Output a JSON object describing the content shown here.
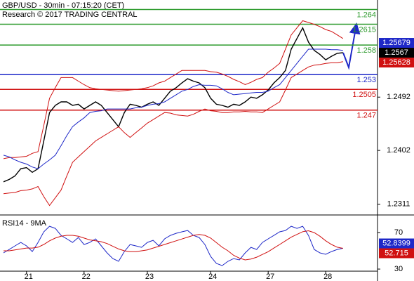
{
  "chart_data": [
    {
      "type": "line",
      "title": "GBP/USD - 30min - 07:15:20 (CET)",
      "subtitle": "Research © 2017 TRADING CENTRAL",
      "categories": [
        null,
        null,
        null,
        null,
        "21",
        null,
        null,
        null,
        null,
        null,
        null,
        null,
        null,
        null,
        "22",
        null,
        null,
        null,
        null,
        null,
        null,
        null,
        null,
        null,
        null,
        "23",
        null,
        null,
        null,
        null,
        null,
        null,
        null,
        null,
        null,
        null,
        "24",
        null,
        null,
        null,
        null,
        null,
        null,
        null,
        null,
        null,
        "27",
        null,
        null,
        null,
        null,
        null,
        null,
        null,
        null,
        null,
        "28",
        null,
        null,
        null
      ],
      "series": [
        {
          "color": "#000000",
          "values": [
            1.2349,
            1.2353,
            1.2359,
            1.2371,
            1.2373,
            1.2365,
            1.2371,
            1.2418,
            1.2466,
            1.2478,
            1.2484,
            1.2484,
            1.2478,
            1.248,
            1.2472,
            1.2478,
            1.2484,
            1.2478,
            1.2466,
            1.2454,
            1.2442,
            1.2466,
            1.248,
            1.2478,
            1.2475,
            1.248,
            1.2484,
            1.2478,
            1.249,
            1.2502,
            1.2508,
            1.2516,
            1.2523,
            1.2519,
            1.2516,
            1.2508,
            1.249,
            1.248,
            1.2478,
            1.2475,
            1.248,
            1.2478,
            1.2484,
            1.2492,
            1.249,
            1.2496,
            1.2504,
            1.2516,
            1.2525,
            1.2537,
            1.2573,
            1.2591,
            1.2609,
            1.2585,
            1.2571,
            1.2564,
            1.2555,
            1.2561,
            1.2566,
            1.2567
          ]
        },
        {
          "color": "#d01010",
          "values": [
            1.2388,
            1.239,
            1.239,
            1.2391,
            1.2392,
            1.2397,
            1.24,
            1.2444,
            1.249,
            1.2508,
            1.2525,
            1.2525,
            1.2525,
            1.2519,
            1.2513,
            1.2508,
            1.2506,
            1.2505,
            1.2504,
            1.2503,
            1.2502,
            1.2503,
            1.2504,
            1.2505,
            1.2506,
            1.2508,
            1.2511,
            1.2516,
            1.2519,
            1.2525,
            1.2531,
            1.2537,
            1.2537,
            1.2537,
            1.2537,
            1.2537,
            1.2535,
            1.2534,
            1.2531,
            1.2527,
            1.2522,
            1.2518,
            1.2513,
            1.2517,
            1.2522,
            1.2525,
            1.2534,
            1.2541,
            1.2549,
            1.2573,
            1.2597,
            1.2609,
            1.2621,
            1.2618,
            1.2615,
            1.2611,
            1.2606,
            1.2603,
            1.2597,
            1.2591
          ]
        },
        {
          "color": "#d01010",
          "values": [
            1.2329,
            1.233,
            1.2331,
            1.2334,
            1.2335,
            1.2337,
            1.2341,
            1.2324,
            1.2309,
            1.2322,
            1.2335,
            1.2359,
            1.2382,
            1.2391,
            1.24,
            1.2409,
            1.2418,
            1.2424,
            1.243,
            1.2436,
            1.2442,
            1.2432,
            1.2424,
            1.2432,
            1.244,
            1.2448,
            1.2454,
            1.246,
            1.2466,
            1.2465,
            1.2462,
            1.2461,
            1.246,
            1.2463,
            1.2468,
            1.2472,
            1.2469,
            1.2468,
            1.2466,
            1.2466,
            1.2467,
            1.2467,
            1.2468,
            1.2467,
            1.2467,
            1.2466,
            1.2472,
            1.2478,
            1.2484,
            1.2504,
            1.2525,
            1.2531,
            1.2537,
            1.2543,
            1.2546,
            1.2547,
            1.2549,
            1.255,
            1.255,
            1.2552
          ]
        },
        {
          "color": "#1e28c8",
          "values": [
            1.2394,
            1.2391,
            1.2386,
            1.2382,
            1.2379,
            1.2374,
            1.2371,
            1.2379,
            1.2386,
            1.2394,
            1.241,
            1.2427,
            1.2442,
            1.245,
            1.2457,
            1.2466,
            1.2468,
            1.2469,
            1.2472,
            1.2472,
            1.2472,
            1.2472,
            1.2472,
            1.2474,
            1.2475,
            1.2478,
            1.248,
            1.2481,
            1.2484,
            1.249,
            1.2496,
            1.2502,
            1.2505,
            1.251,
            1.2513,
            1.2512,
            1.2512,
            1.2511,
            1.2506,
            1.25,
            1.2496,
            1.2497,
            1.2498,
            1.2499,
            1.25,
            1.25,
            1.2502,
            1.2508,
            1.2513,
            1.2525,
            1.2537,
            1.2549,
            1.2561,
            1.2573,
            1.2573,
            1.2573,
            1.2573,
            1.2572,
            1.2572,
            1.2571
          ]
        }
      ],
      "levels": [
        {
          "value": 1.264,
          "color": "#2e9b2e"
        },
        {
          "value": 1.2615,
          "color": "#2e9b2e"
        },
        {
          "value": 1.258,
          "color": "#2e9b2e"
        },
        {
          "value": 1.253,
          "color": "#1e28c8"
        },
        {
          "value": 1.2505,
          "color": "#d01010"
        },
        {
          "value": 1.247,
          "color": "#d01010"
        }
      ],
      "price_tags": [
        {
          "value": 1.25679,
          "color": "#1e28c8"
        },
        {
          "value": 1.2567,
          "color": "#000000"
        },
        {
          "value": 1.25628,
          "color": "#d01010"
        }
      ],
      "ylim": [
        1.2293,
        1.2656
      ],
      "yticks": [
        1.2311,
        1.2402,
        1.2492
      ]
    },
    {
      "type": "line",
      "title": "RSI14 - 9MA",
      "series": [
        {
          "color": "#1e28c8",
          "values": [
            47.7,
            51.5,
            55.4,
            59.2,
            55.4,
            49.2,
            59.2,
            70.8,
            76.9,
            74.6,
            66.9,
            63.1,
            59.2,
            64.6,
            56.9,
            59.2,
            63.1,
            55.4,
            47.7,
            41.5,
            38.5,
            49.2,
            56.9,
            55.4,
            53.8,
            59.2,
            61.5,
            55.4,
            63.1,
            66.9,
            69.2,
            70.8,
            72.3,
            66.9,
            64.6,
            56.9,
            43.8,
            36.2,
            33.8,
            38.5,
            41.5,
            40.0,
            47.7,
            53.8,
            51.5,
            59.2,
            63.1,
            66.9,
            70.8,
            72.3,
            76.9,
            74.6,
            76.9,
            66.9,
            51.5,
            47.7,
            46.2,
            49.2,
            51.5,
            52.8
          ]
        },
        {
          "color": "#d01010",
          "values": [
            50,
            50,
            51,
            52,
            53,
            53,
            54,
            57,
            61,
            64,
            66,
            67,
            67,
            66,
            64,
            62,
            61,
            60,
            58,
            55,
            52,
            50,
            49,
            49,
            50,
            51,
            53,
            55,
            57,
            59,
            61,
            63,
            65,
            67,
            68,
            67,
            64,
            59,
            54,
            50,
            45,
            42,
            40,
            41,
            43,
            46,
            49,
            53,
            57,
            61,
            65,
            68,
            71,
            72,
            70,
            66,
            61,
            57,
            54,
            52.7
          ]
        }
      ],
      "price_tags": [
        {
          "value": 52.8399,
          "color": "#1e28c8"
        },
        {
          "value": 52.715,
          "color": "#d01010"
        }
      ],
      "ylim": [
        20.8,
        86.2
      ],
      "yticks": [
        30,
        70
      ]
    }
  ]
}
